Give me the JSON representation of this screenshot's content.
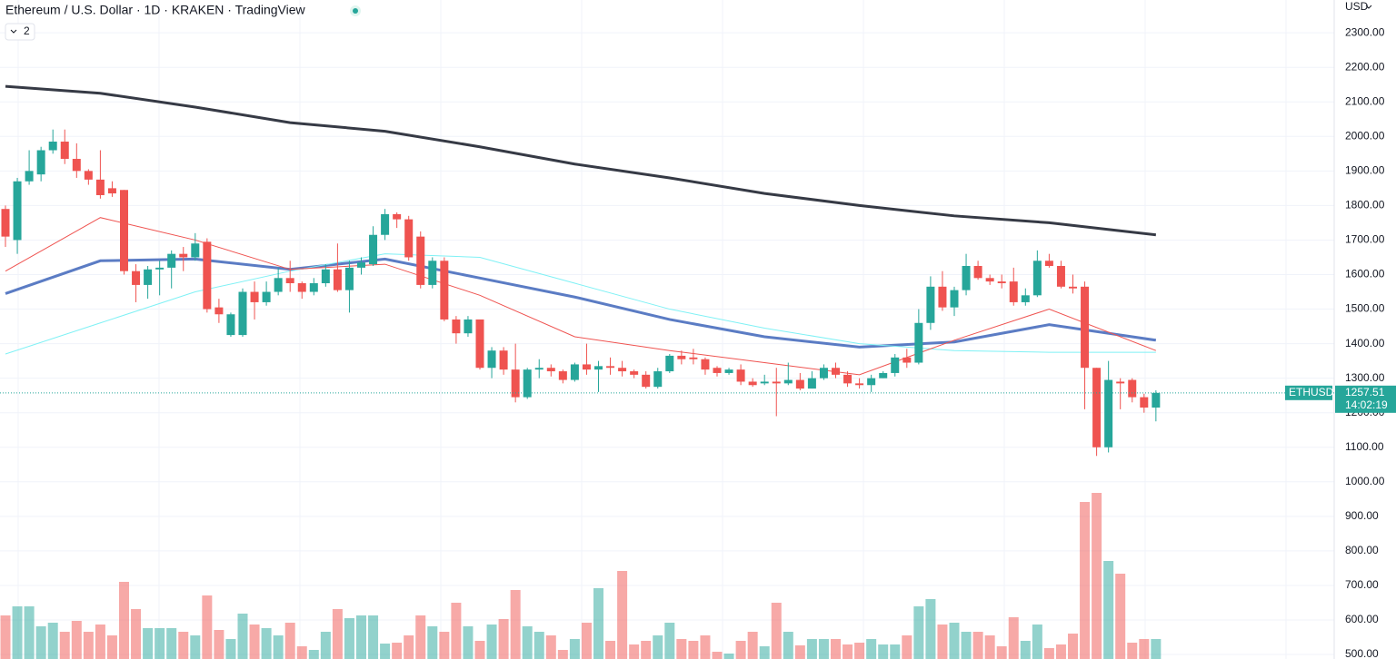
{
  "header": {
    "title": "Ethereum / U.S. Dollar · 1D · KRAKEN · TradingView",
    "indicators_count": "2",
    "currency": "USD"
  },
  "last_price": {
    "symbol": "ETHUSD",
    "price": "1257.51",
    "countdown": "14:02:19"
  },
  "chart_data": {
    "type": "candlestick",
    "up_color": "#26a69a",
    "down_color": "#ef5350",
    "ylim": [
      487,
      2395
    ],
    "yticks": [
      {
        "value": 500,
        "label": "500.00"
      },
      {
        "value": 600,
        "label": "600.00"
      },
      {
        "value": 700,
        "label": "700.00"
      },
      {
        "value": 800,
        "label": "800.00"
      },
      {
        "value": 900,
        "label": "900.00"
      },
      {
        "value": 1000,
        "label": "1000.00"
      },
      {
        "value": 1100,
        "label": "1100.00"
      },
      {
        "value": 1200,
        "label": "1200.00"
      },
      {
        "value": 1300,
        "label": "1300.00"
      },
      {
        "value": 1400,
        "label": "1400.00"
      },
      {
        "value": 1500,
        "label": "1500.00"
      },
      {
        "value": 1600,
        "label": "1600.00"
      },
      {
        "value": 1700,
        "label": "1700.00"
      },
      {
        "value": 1800,
        "label": "1800.00"
      },
      {
        "value": 1900,
        "label": "1900.00"
      },
      {
        "value": 2000,
        "label": "2000.00"
      },
      {
        "value": 2100,
        "label": "2100.00"
      },
      {
        "value": 2200,
        "label": "2200.00"
      },
      {
        "value": 2300,
        "label": "2300.00"
      }
    ],
    "open": [
      1790,
      1700,
      1870,
      1890,
      1960,
      1985,
      1935,
      1900,
      1875,
      1850,
      1845,
      1610,
      1570,
      1615,
      1620,
      1660,
      1650,
      1695,
      1505,
      1425,
      1425,
      1550,
      1520,
      1550,
      1590,
      1575,
      1550,
      1575,
      1615,
      1555,
      1620,
      1630,
      1715,
      1775,
      1760,
      1710,
      1570,
      1640,
      1470,
      1430,
      1470,
      1330,
      1380,
      1325,
      1245,
      1325,
      1330,
      1320,
      1295,
      1340,
      1325,
      1335,
      1330,
      1320,
      1310,
      1275,
      1320,
      1365,
      1360,
      1355,
      1330,
      1315,
      1325,
      1290,
      1285,
      1290,
      1285,
      1295,
      1270,
      1300,
      1330,
      1310,
      1285,
      1280,
      1300,
      1315,
      1360,
      1345,
      1460,
      1565,
      1505,
      1555,
      1625,
      1590,
      1580,
      1580,
      1520,
      1540,
      1640,
      1625,
      1565,
      1565,
      1330,
      1100,
      1290,
      1295,
      1245,
      1215
    ],
    "high": [
      1800,
      1880,
      1960,
      1970,
      2020,
      2020,
      1980,
      1905,
      1960,
      1870,
      1845,
      1630,
      1625,
      1640,
      1670,
      1680,
      1720,
      1705,
      1530,
      1490,
      1560,
      1580,
      1580,
      1620,
      1640,
      1580,
      1590,
      1630,
      1690,
      1640,
      1650,
      1740,
      1790,
      1780,
      1770,
      1725,
      1650,
      1650,
      1480,
      1480,
      1470,
      1390,
      1390,
      1400,
      1330,
      1355,
      1340,
      1325,
      1345,
      1400,
      1350,
      1360,
      1350,
      1325,
      1320,
      1330,
      1370,
      1380,
      1385,
      1360,
      1335,
      1330,
      1340,
      1300,
      1310,
      1330,
      1345,
      1315,
      1320,
      1340,
      1345,
      1320,
      1300,
      1310,
      1320,
      1370,
      1385,
      1500,
      1595,
      1610,
      1565,
      1660,
      1640,
      1600,
      1600,
      1620,
      1560,
      1670,
      1660,
      1640,
      1600,
      1580,
      1330,
      1350,
      1300,
      1300,
      1255,
      1265
    ],
    "low": [
      1680,
      1660,
      1860,
      1870,
      1950,
      1920,
      1880,
      1860,
      1820,
      1825,
      1600,
      1520,
      1530,
      1540,
      1560,
      1610,
      1640,
      1490,
      1460,
      1420,
      1420,
      1470,
      1510,
      1540,
      1550,
      1530,
      1540,
      1565,
      1550,
      1490,
      1600,
      1625,
      1700,
      1735,
      1640,
      1560,
      1560,
      1465,
      1400,
      1420,
      1325,
      1300,
      1310,
      1230,
      1240,
      1300,
      1305,
      1285,
      1290,
      1310,
      1260,
      1310,
      1305,
      1300,
      1270,
      1270,
      1315,
      1340,
      1340,
      1310,
      1305,
      1310,
      1280,
      1275,
      1280,
      1190,
      1280,
      1265,
      1270,
      1295,
      1300,
      1275,
      1270,
      1260,
      1300,
      1305,
      1330,
      1340,
      1440,
      1495,
      1480,
      1540,
      1585,
      1570,
      1560,
      1510,
      1510,
      1535,
      1620,
      1560,
      1545,
      1210,
      1075,
      1085,
      1210,
      1230,
      1200,
      1175
    ],
    "close": [
      1710,
      1870,
      1900,
      1960,
      1985,
      1935,
      1900,
      1875,
      1830,
      1835,
      1610,
      1570,
      1615,
      1620,
      1660,
      1650,
      1690,
      1500,
      1485,
      1485,
      1550,
      1520,
      1550,
      1590,
      1575,
      1550,
      1575,
      1615,
      1555,
      1620,
      1635,
      1715,
      1775,
      1760,
      1650,
      1570,
      1640,
      1470,
      1430,
      1470,
      1330,
      1380,
      1325,
      1245,
      1325,
      1330,
      1320,
      1295,
      1340,
      1325,
      1335,
      1330,
      1320,
      1310,
      1275,
      1320,
      1365,
      1355,
      1355,
      1325,
      1315,
      1325,
      1290,
      1280,
      1290,
      1285,
      1295,
      1270,
      1300,
      1330,
      1310,
      1285,
      1280,
      1300,
      1315,
      1360,
      1345,
      1460,
      1565,
      1505,
      1555,
      1625,
      1590,
      1580,
      1575,
      1520,
      1540,
      1640,
      1625,
      1565,
      1560,
      1330,
      1100,
      1295,
      1285,
      1245,
      1215,
      1257.51
    ],
    "volume": [
      48,
      58,
      58,
      36,
      40,
      30,
      42,
      30,
      38,
      26,
      85,
      55,
      34,
      34,
      34,
      30,
      26,
      70,
      32,
      22,
      50,
      38,
      34,
      26,
      40,
      14,
      10,
      30,
      55,
      45,
      48,
      48,
      17,
      18,
      26,
      48,
      36,
      30,
      62,
      36,
      20,
      38,
      44,
      76,
      36,
      30,
      26,
      10,
      22,
      40,
      78,
      20,
      97,
      16,
      20,
      26,
      40,
      22,
      20,
      26,
      8,
      6,
      20,
      30,
      14,
      62,
      30,
      15,
      22,
      22,
      22,
      16,
      18,
      22,
      16,
      16,
      26,
      58,
      66,
      38,
      40,
      30,
      30,
      26,
      14,
      46,
      20,
      38,
      12,
      16,
      28,
      173,
      183,
      108,
      94,
      18,
      22,
      22
    ],
    "lines": [
      {
        "color": "#363a45",
        "width": 3,
        "x": [
          0,
          8,
          16,
          24,
          32,
          40,
          48,
          56,
          64,
          72,
          80,
          88,
          97
        ],
        "values": [
          2145,
          2125,
          2085,
          2040,
          2015,
          1970,
          1920,
          1880,
          1835,
          1800,
          1770,
          1750,
          1715
        ]
      },
      {
        "color": "#5b7cc4",
        "width": 3,
        "x": [
          0,
          8,
          16,
          24,
          32,
          40,
          48,
          56,
          64,
          72,
          80,
          88,
          97
        ],
        "values": [
          1545,
          1640,
          1645,
          1615,
          1645,
          1590,
          1535,
          1470,
          1420,
          1390,
          1405,
          1455,
          1410
        ]
      },
      {
        "color": "#7ff1f5",
        "width": 1,
        "x": [
          0,
          8,
          16,
          24,
          32,
          40,
          48,
          56,
          64,
          72,
          80,
          88,
          97
        ],
        "values": [
          1370,
          1460,
          1550,
          1610,
          1660,
          1650,
          1575,
          1500,
          1445,
          1400,
          1380,
          1375,
          1375
        ]
      },
      {
        "color": "#ef5350",
        "width": 1,
        "x": [
          0,
          8,
          16,
          24,
          32,
          40,
          48,
          56,
          64,
          72,
          80,
          88,
          97
        ],
        "values": [
          1610,
          1765,
          1700,
          1615,
          1630,
          1540,
          1420,
          1380,
          1345,
          1310,
          1410,
          1500,
          1380
        ]
      }
    ]
  }
}
